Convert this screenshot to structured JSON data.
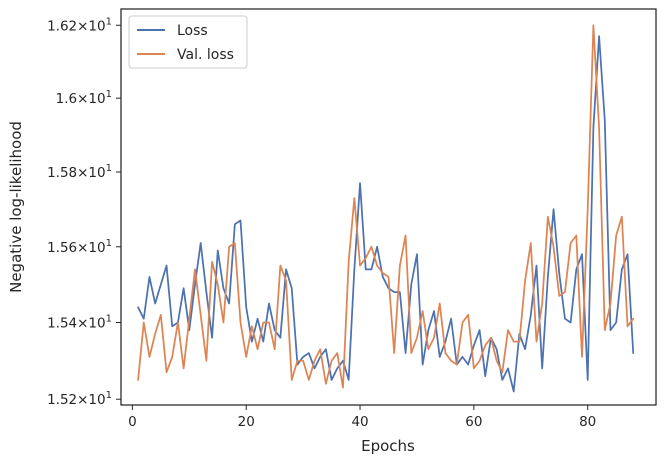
{
  "chart_data": {
    "type": "line",
    "xlabel": "Epochs",
    "ylabel": "Negative log-likelihood",
    "xlim": [
      -2,
      92
    ],
    "ylim": [
      15.185,
      16.245
    ],
    "y_scale": "log",
    "grid": false,
    "legend_position": "top-left",
    "x_ticks": [
      0,
      20,
      40,
      60,
      80
    ],
    "x_tick_labels": [
      "0",
      "20",
      "40",
      "60",
      "80"
    ],
    "y_ticks": [
      15.2,
      15.4,
      15.6,
      15.8,
      16.0,
      16.2
    ],
    "y_tick_labels": [
      {
        "mant": "1.52",
        "exp": "1"
      },
      {
        "mant": "1.54",
        "exp": "1"
      },
      {
        "mant": "1.56",
        "exp": "1"
      },
      {
        "mant": "1.58",
        "exp": "1"
      },
      {
        "mant": "1.6",
        "exp": "1"
      },
      {
        "mant": "1.62",
        "exp": "1"
      }
    ],
    "x": [
      1,
      2,
      3,
      4,
      5,
      6,
      7,
      8,
      9,
      10,
      11,
      12,
      13,
      14,
      15,
      16,
      17,
      18,
      19,
      20,
      21,
      22,
      23,
      24,
      25,
      26,
      27,
      28,
      29,
      30,
      31,
      32,
      33,
      34,
      35,
      36,
      37,
      38,
      39,
      40,
      41,
      42,
      43,
      44,
      45,
      46,
      47,
      48,
      49,
      50,
      51,
      52,
      53,
      54,
      55,
      56,
      57,
      58,
      59,
      60,
      61,
      62,
      63,
      64,
      65,
      66,
      67,
      68,
      69,
      70,
      71,
      72,
      73,
      74,
      75,
      76,
      77,
      78,
      79,
      80,
      81,
      82,
      83,
      84,
      85,
      86,
      87,
      88
    ],
    "series": [
      {
        "name": "Loss",
        "color": "#4c72b0",
        "values": [
          15.44,
          15.41,
          15.52,
          15.45,
          15.5,
          15.55,
          15.39,
          15.4,
          15.49,
          15.38,
          15.5,
          15.61,
          15.48,
          15.36,
          15.59,
          15.49,
          15.45,
          15.66,
          15.67,
          15.44,
          15.35,
          15.41,
          15.35,
          15.45,
          15.38,
          15.36,
          15.54,
          15.49,
          15.29,
          15.31,
          15.32,
          15.28,
          15.31,
          15.33,
          15.25,
          15.28,
          15.3,
          15.25,
          15.54,
          15.77,
          15.54,
          15.54,
          15.6,
          15.52,
          15.49,
          15.48,
          15.48,
          15.32,
          15.5,
          15.58,
          15.29,
          15.38,
          15.43,
          15.31,
          15.35,
          15.41,
          15.29,
          15.31,
          15.29,
          15.34,
          15.38,
          15.26,
          15.36,
          15.33,
          15.25,
          15.28,
          15.22,
          15.37,
          15.33,
          15.42,
          15.55,
          15.28,
          15.52,
          15.7,
          15.53,
          15.41,
          15.4,
          15.54,
          15.58,
          15.25,
          15.92,
          16.17,
          15.94,
          15.38,
          15.4,
          15.54,
          15.58,
          15.32
        ]
      },
      {
        "name": "Val. loss",
        "color": "#dd8452",
        "values": [
          15.25,
          15.4,
          15.31,
          15.37,
          15.42,
          15.27,
          15.31,
          15.4,
          15.28,
          15.41,
          15.54,
          15.42,
          15.3,
          15.56,
          15.5,
          15.4,
          15.6,
          15.61,
          15.4,
          15.31,
          15.39,
          15.33,
          15.4,
          15.4,
          15.33,
          15.55,
          15.51,
          15.25,
          15.3,
          15.3,
          15.25,
          15.3,
          15.33,
          15.24,
          15.3,
          15.32,
          15.23,
          15.56,
          15.73,
          15.55,
          15.57,
          15.6,
          15.55,
          15.53,
          15.52,
          15.32,
          15.55,
          15.63,
          15.32,
          15.36,
          15.43,
          15.33,
          15.36,
          15.45,
          15.32,
          15.3,
          15.29,
          15.4,
          15.42,
          15.28,
          15.3,
          15.34,
          15.36,
          15.3,
          15.27,
          15.38,
          15.35,
          15.35,
          15.51,
          15.61,
          15.35,
          15.45,
          15.68,
          15.6,
          15.47,
          15.48,
          15.61,
          15.63,
          15.31,
          15.7,
          16.2,
          15.92,
          15.38,
          15.45,
          15.63,
          15.68,
          15.39,
          15.41
        ]
      }
    ]
  }
}
